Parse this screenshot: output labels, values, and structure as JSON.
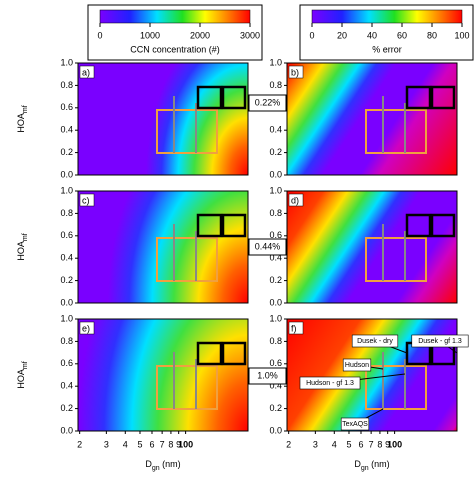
{
  "chart_data": [
    {
      "type": "heatmap",
      "label": "a)",
      "ylabel": [
        "HOA",
        "mf"
      ],
      "xlim": [
        19.5,
        258
      ],
      "ylim": [
        0,
        1
      ],
      "yticks": [
        {
          "value": 0,
          "label": "0.0"
        },
        {
          "value": 0.2,
          "label": "0.2"
        },
        {
          "value": 0.4,
          "label": "0.4"
        },
        {
          "value": 0.6,
          "label": "0.6"
        },
        {
          "value": 0.8,
          "label": "0.8"
        },
        {
          "value": 1,
          "label": "1.0"
        }
      ],
      "colorbar": {
        "label": "CCN concentration (#)",
        "lim": [
          0,
          3000
        ],
        "ticks": [
          0,
          1000,
          2000,
          3000
        ]
      }
    },
    {
      "type": "heatmap",
      "label": "b)",
      "xlim": [
        19.5,
        258
      ],
      "ylim": [
        0,
        1
      ],
      "yticks": [
        {
          "value": 0,
          "label": "0.0"
        },
        {
          "value": 0.2,
          "label": "0.2"
        },
        {
          "value": 0.4,
          "label": "0.4"
        },
        {
          "value": 0.6,
          "label": "0.6"
        },
        {
          "value": 0.8,
          "label": "0.8"
        },
        {
          "value": 1,
          "label": "1.0"
        }
      ],
      "colorbar": {
        "label": "% error",
        "lim": [
          0,
          100
        ],
        "ticks": [
          0,
          20,
          40,
          60,
          80,
          100
        ]
      }
    },
    {
      "type": "heatmap",
      "label": "c)",
      "ylabel": [
        "HOA",
        "mf"
      ],
      "xlim": [
        19.5,
        258
      ],
      "ylim": [
        0,
        1
      ],
      "yticks": [
        {
          "value": 0,
          "label": "0.0"
        },
        {
          "value": 0.2,
          "label": "0.2"
        },
        {
          "value": 0.4,
          "label": "0.4"
        },
        {
          "value": 0.6,
          "label": "0.6"
        },
        {
          "value": 0.8,
          "label": "0.8"
        },
        {
          "value": 1,
          "label": "1.0"
        }
      ]
    },
    {
      "type": "heatmap",
      "label": "d)",
      "xlim": [
        19.5,
        258
      ],
      "ylim": [
        0,
        1
      ],
      "yticks": [
        {
          "value": 0,
          "label": "0.0"
        },
        {
          "value": 0.2,
          "label": "0.2"
        },
        {
          "value": 0.4,
          "label": "0.4"
        },
        {
          "value": 0.6,
          "label": "0.6"
        },
        {
          "value": 0.8,
          "label": "0.8"
        },
        {
          "value": 1,
          "label": "1.0"
        }
      ]
    },
    {
      "type": "heatmap",
      "label": "e)",
      "ylabel": [
        "HOA",
        "mf"
      ],
      "xlabel": [
        "D",
        "gn",
        " (nm)"
      ],
      "xlim": [
        19.5,
        258
      ],
      "ylim": [
        0,
        1
      ],
      "xscale": "log",
      "xticks": [
        {
          "value": 20,
          "label": "2"
        },
        {
          "value": 30,
          "label": "3"
        },
        {
          "value": 40,
          "label": "4"
        },
        {
          "value": 50,
          "label": "5"
        },
        {
          "value": 60,
          "label": "6"
        },
        {
          "value": 70,
          "label": "7"
        },
        {
          "value": 80,
          "label": "8"
        },
        {
          "value": 90,
          "label": "9"
        },
        100
      ],
      "yticks": [
        {
          "value": 0,
          "label": "0.0"
        },
        {
          "value": 0.2,
          "label": "0.2"
        },
        {
          "value": 0.4,
          "label": "0.4"
        },
        {
          "value": 0.6,
          "label": "0.6"
        },
        {
          "value": 0.8,
          "label": "0.8"
        },
        {
          "value": 1,
          "label": "1.0"
        }
      ]
    },
    {
      "type": "heatmap",
      "label": "f)",
      "xlabel": [
        "D",
        "gn",
        " (nm)"
      ],
      "xlim": [
        19.5,
        258
      ],
      "ylim": [
        0,
        1
      ],
      "xscale": "log",
      "xticks": [
        {
          "value": 20,
          "label": "2"
        },
        {
          "value": 30,
          "label": "3"
        },
        {
          "value": 40,
          "label": "4"
        },
        {
          "value": 50,
          "label": "5"
        },
        {
          "value": 60,
          "label": "6"
        },
        {
          "value": 70,
          "label": "7"
        },
        {
          "value": 80,
          "label": "8"
        },
        {
          "value": 90,
          "label": "9"
        },
        100
      ],
      "yticks": [
        {
          "value": 0,
          "label": "0.0"
        },
        {
          "value": 0.2,
          "label": "0.2"
        },
        {
          "value": 0.4,
          "label": "0.4"
        },
        {
          "value": 0.6,
          "label": "0.6"
        },
        {
          "value": 0.8,
          "label": "0.8"
        },
        {
          "value": 1,
          "label": "1.0"
        }
      ],
      "annotations": [
        "Dusek - dry",
        "Dusek - gf 1.3",
        "Hudson",
        "Hudson - gf 1.3",
        "TexAQS"
      ]
    }
  ],
  "supersaturations": [
    "0.22%",
    "0.44%",
    "1.0%"
  ]
}
